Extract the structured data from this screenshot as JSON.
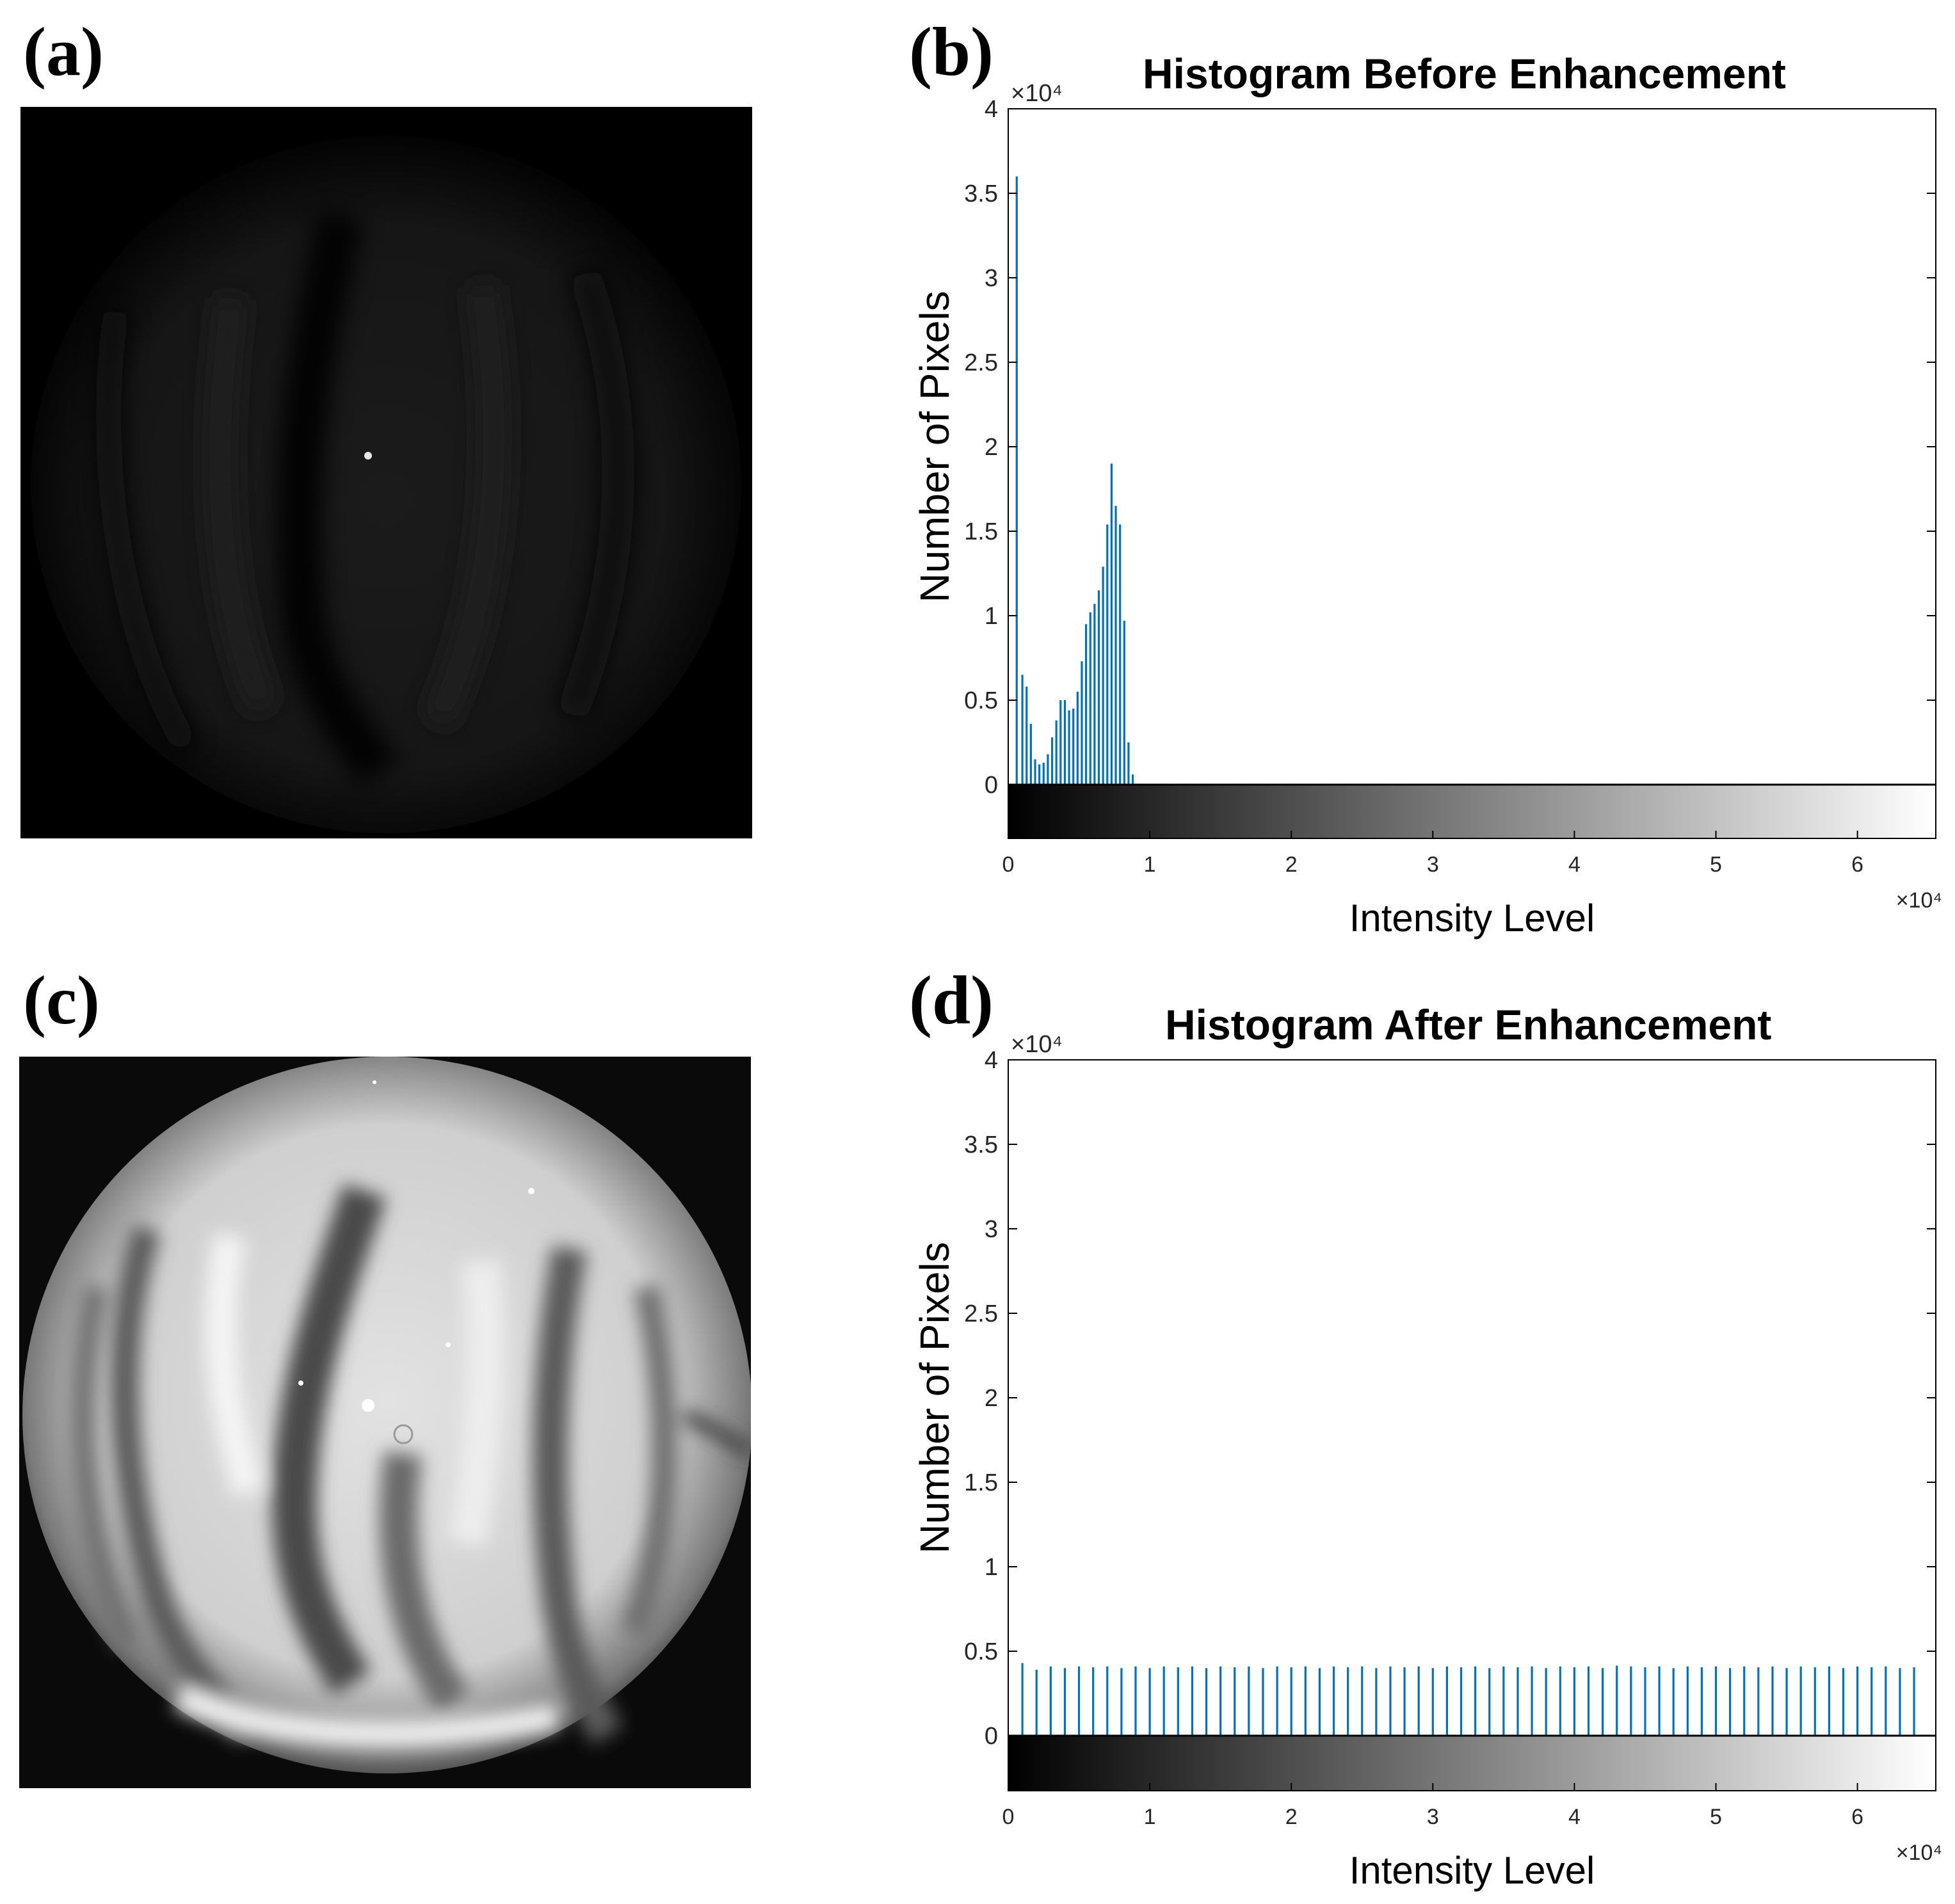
{
  "panels": {
    "a": "(a)",
    "b": "(b)",
    "c": "(c)",
    "d": "(d)"
  },
  "images": {
    "before": {
      "description_icon": "aurora-dark-image"
    },
    "after": {
      "description_icon": "aurora-enhanced-image"
    }
  },
  "colors": {
    "bar": "#0072BD",
    "axis": "#000000",
    "photo_background": "#000000"
  },
  "chart_data": [
    {
      "type": "bar",
      "title": "Histogram Before Enhancement",
      "xlabel": "Intensity Level",
      "ylabel": "Number of Pixels",
      "x_exponent": "×10⁴",
      "y_exponent": "×10⁴",
      "xlim": [
        0,
        65535
      ],
      "ylim": [
        0,
        40000
      ],
      "xticks": [
        0,
        10000,
        20000,
        30000,
        40000,
        50000,
        60000
      ],
      "xtick_labels": [
        "0",
        "1",
        "2",
        "3",
        "4",
        "5",
        "6"
      ],
      "yticks": [
        0,
        5000,
        10000,
        15000,
        20000,
        25000,
        30000,
        35000,
        40000
      ],
      "ytick_labels": [
        "0",
        "0.5",
        "1",
        "1.5",
        "2",
        "2.5",
        "3",
        "3.5",
        "4"
      ],
      "grid": false,
      "colorbar": "grayscale",
      "x": [
        600,
        1000,
        1300,
        1600,
        1900,
        2200,
        2500,
        2800,
        3100,
        3400,
        3700,
        4000,
        4300,
        4600,
        4900,
        5200,
        5500,
        5800,
        6100,
        6400,
        6700,
        7000,
        7300,
        7600,
        7900,
        8200,
        8500,
        8800
      ],
      "values": [
        36000,
        6500,
        5800,
        3600,
        1500,
        1200,
        1300,
        1800,
        2800,
        3800,
        5000,
        5000,
        4400,
        4500,
        5500,
        7300,
        9500,
        10200,
        10700,
        11500,
        12900,
        15400,
        19000,
        16500,
        15400,
        9700,
        2500,
        600
      ]
    },
    {
      "type": "bar",
      "title": "Histogram After Enhancement",
      "xlabel": "Intensity Level",
      "ylabel": "Number of Pixels",
      "x_exponent": "×10⁴",
      "y_exponent": "×10⁴",
      "xlim": [
        0,
        65535
      ],
      "ylim": [
        0,
        40000
      ],
      "xticks": [
        0,
        10000,
        20000,
        30000,
        40000,
        50000,
        60000
      ],
      "xtick_labels": [
        "0",
        "1",
        "2",
        "3",
        "4",
        "5",
        "6"
      ],
      "yticks": [
        0,
        5000,
        10000,
        15000,
        20000,
        25000,
        30000,
        35000,
        40000
      ],
      "ytick_labels": [
        "0",
        "0.5",
        "1",
        "1.5",
        "2",
        "2.5",
        "3",
        "3.5",
        "4"
      ],
      "grid": false,
      "colorbar": "grayscale",
      "x": [
        1000,
        2000,
        3000,
        4000,
        5000,
        6000,
        7000,
        8000,
        9000,
        10000,
        11000,
        12000,
        13000,
        14000,
        15000,
        16000,
        17000,
        18000,
        19000,
        20000,
        21000,
        22000,
        23000,
        24000,
        25000,
        26000,
        27000,
        28000,
        29000,
        30000,
        31000,
        32000,
        33000,
        34000,
        35000,
        36000,
        37000,
        38000,
        39000,
        40000,
        41000,
        42000,
        43000,
        44000,
        45000,
        46000,
        47000,
        48000,
        49000,
        50000,
        51000,
        52000,
        53000,
        54000,
        55000,
        56000,
        57000,
        58000,
        59000,
        60000,
        61000,
        62000,
        63000,
        64000
      ],
      "values": [
        4300,
        3900,
        4100,
        4000,
        4100,
        4050,
        4100,
        4000,
        4100,
        4000,
        4100,
        4050,
        4100,
        4000,
        4100,
        4050,
        4100,
        4000,
        4100,
        4050,
        4100,
        4000,
        4100,
        4050,
        4100,
        4000,
        4100,
        4050,
        4100,
        4000,
        4100,
        4050,
        4100,
        4000,
        4100,
        4050,
        4100,
        4000,
        4100,
        4050,
        4100,
        4000,
        4150,
        4100,
        4050,
        4100,
        4000,
        4100,
        4050,
        4100,
        4000,
        4100,
        4050,
        4100,
        4000,
        4100,
        4050,
        4100,
        4000,
        4100,
        4050,
        4100,
        4000,
        4050
      ]
    }
  ]
}
